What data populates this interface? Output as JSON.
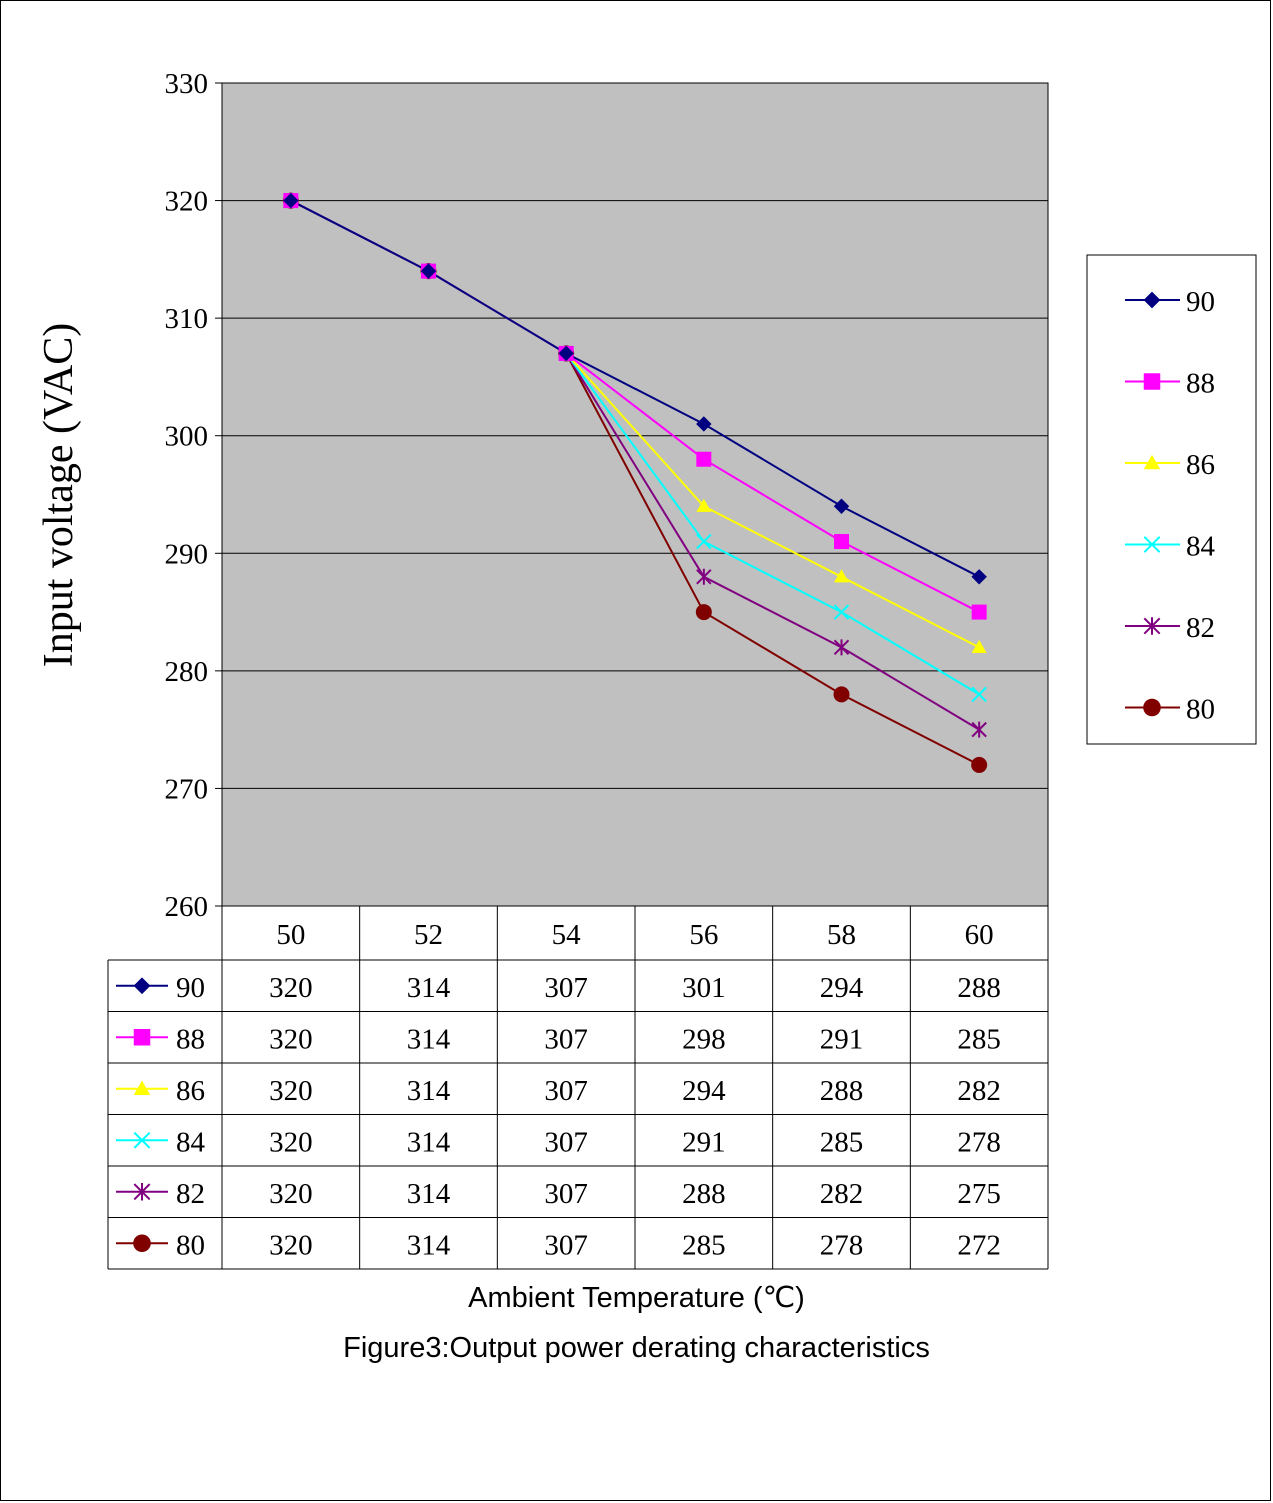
{
  "chart_data": {
    "type": "line",
    "title": "",
    "xlabel": "Ambient Temperature (℃)",
    "ylabel": "Input voltage (VAC)",
    "categories": [
      "50",
      "52",
      "54",
      "56",
      "58",
      "60"
    ],
    "ylim": [
      260,
      330
    ],
    "yticks": [
      260,
      270,
      280,
      290,
      300,
      310,
      320,
      330
    ],
    "grid": true,
    "legend_position": "right",
    "series": [
      {
        "name": "90",
        "color": "#000080",
        "marker": "diamond",
        "values": [
          320,
          314,
          307,
          301,
          294,
          288
        ]
      },
      {
        "name": "88",
        "color": "#ff00ff",
        "marker": "square",
        "values": [
          320,
          314,
          307,
          298,
          291,
          285
        ]
      },
      {
        "name": "86",
        "color": "#ffff00",
        "marker": "triangle",
        "values": [
          320,
          314,
          307,
          294,
          288,
          282
        ]
      },
      {
        "name": "84",
        "color": "#00ffff",
        "marker": "x",
        "values": [
          320,
          314,
          307,
          291,
          285,
          278
        ]
      },
      {
        "name": "82",
        "color": "#800080",
        "marker": "star",
        "values": [
          320,
          314,
          307,
          288,
          282,
          275
        ]
      },
      {
        "name": "80",
        "color": "#800000",
        "marker": "circle",
        "values": [
          320,
          314,
          307,
          285,
          278,
          272
        ]
      }
    ],
    "data_table": true
  },
  "caption": "Figure3:Output power derating characteristics",
  "colors": {
    "plot_background": "#c0c0c0",
    "gridline": "#000000"
  }
}
